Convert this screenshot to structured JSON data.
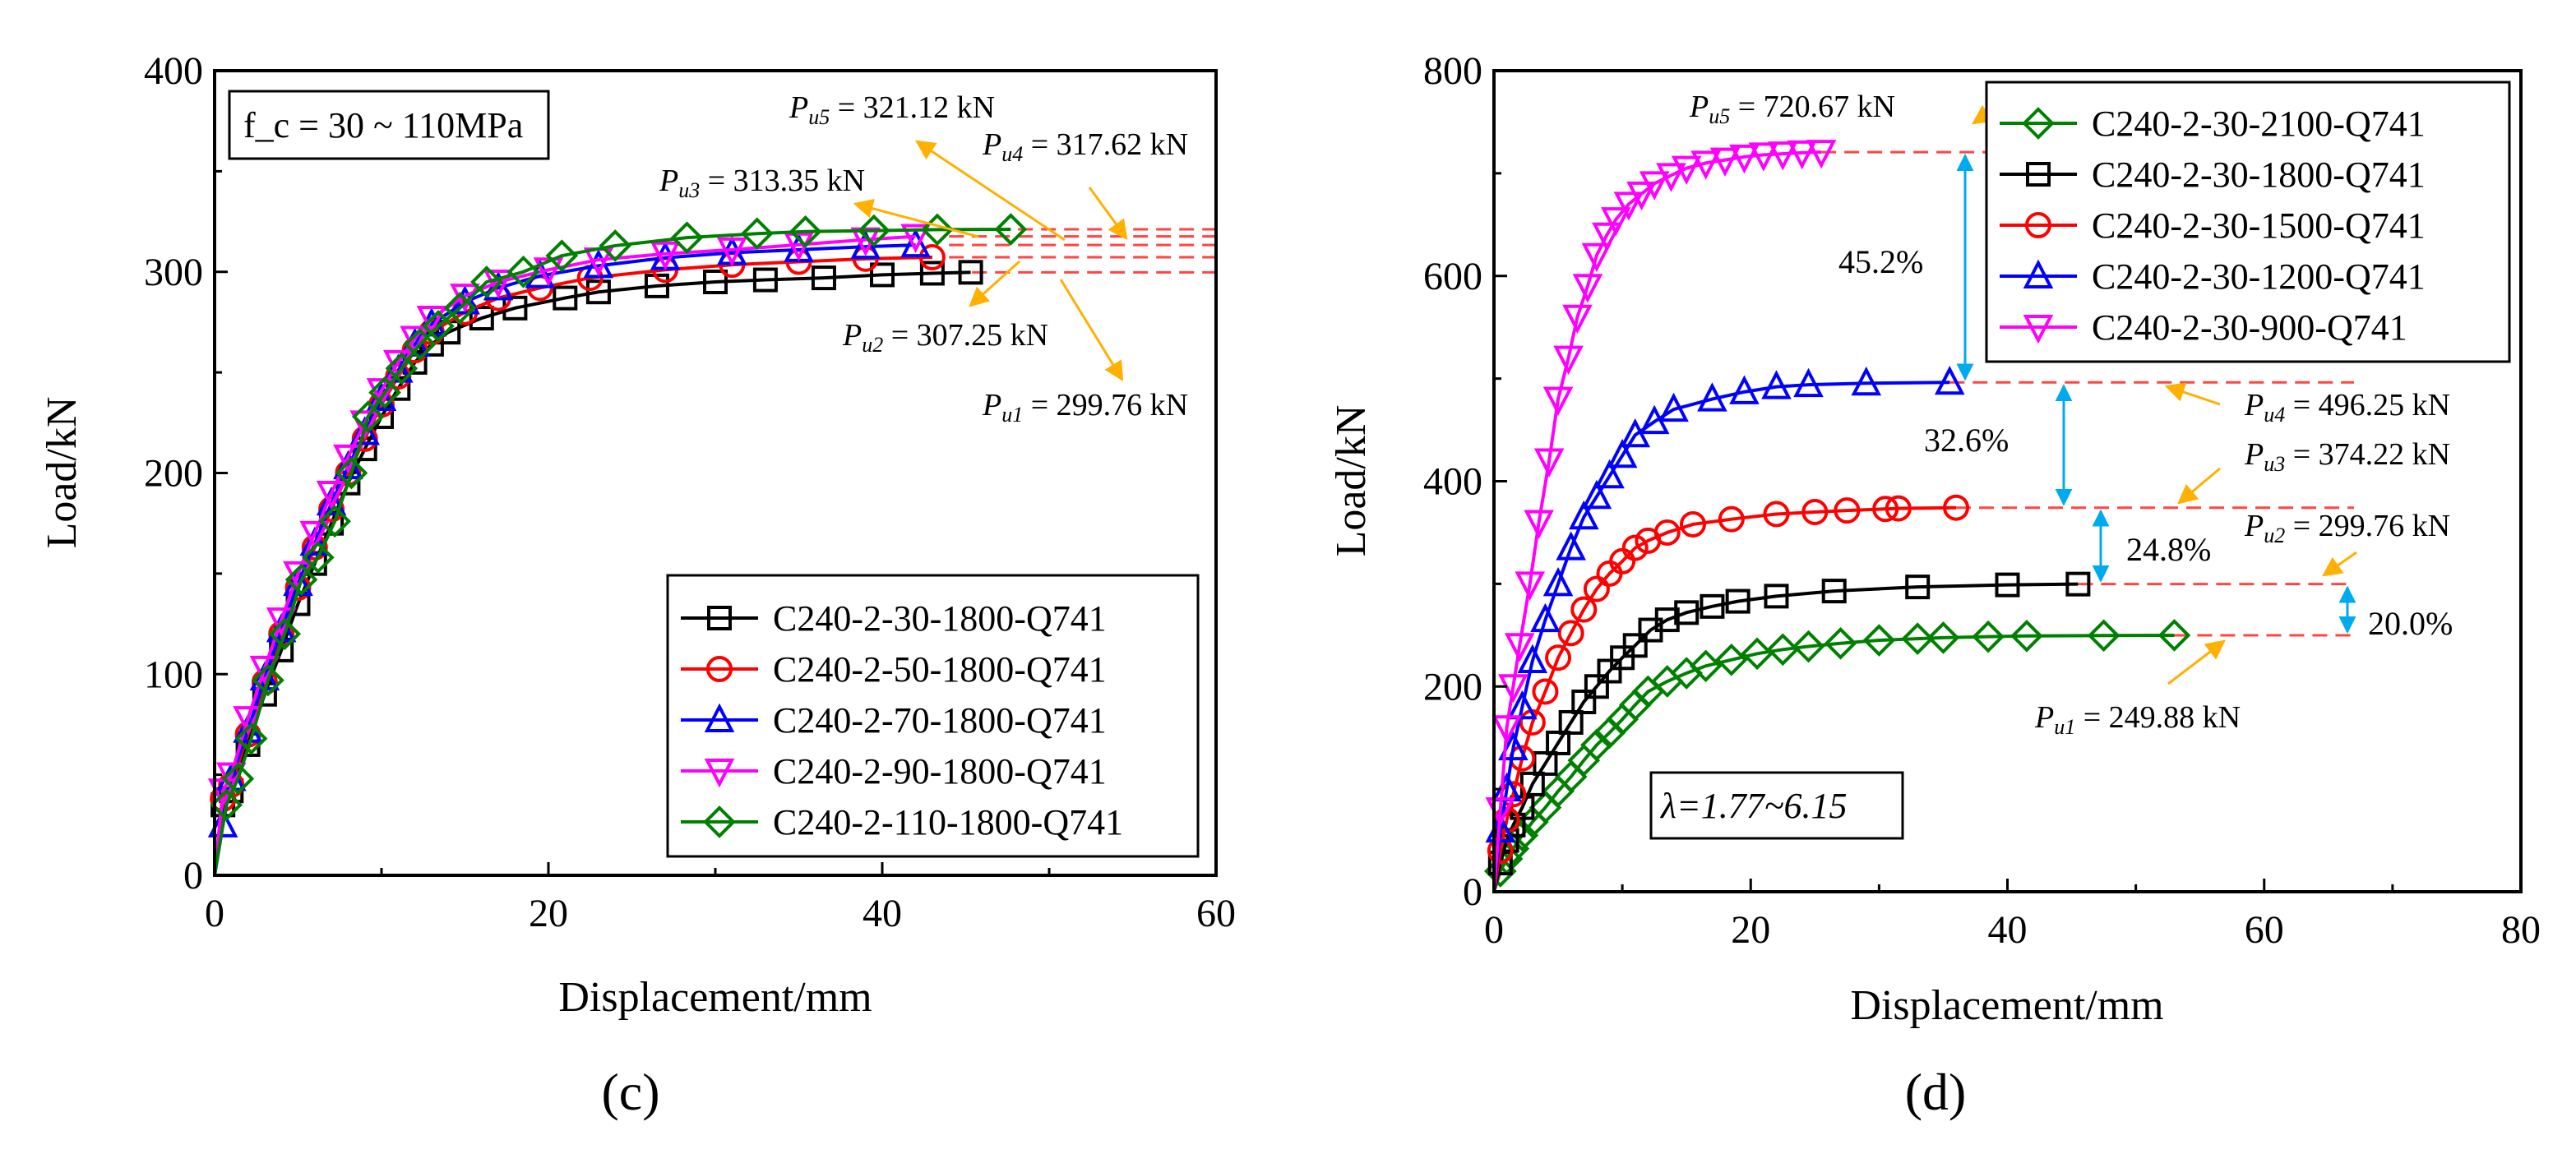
{
  "chart_data": [
    {
      "type": "line",
      "panel_label": "(c)",
      "xlabel": "Displacement/mm",
      "ylabel": "Load/kN",
      "xlim": [
        0,
        60
      ],
      "ylim": [
        0,
        400
      ],
      "xticks": [
        0,
        20,
        40,
        60
      ],
      "yticks": [
        0,
        100,
        200,
        300,
        400
      ],
      "grid": false,
      "legend_position": "bottom-right",
      "note": "f_c = 30 ~ 110MPa",
      "series": [
        {
          "name": "C240-2-30-1800-Q741",
          "color": "#000000",
          "marker": "square",
          "x": [
            0,
            0.5,
            1,
            2,
            3,
            4,
            5,
            6,
            7,
            8,
            9,
            10,
            11,
            12,
            13,
            14,
            16,
            18,
            21,
            23,
            26.5,
            30,
            33,
            36.5,
            40,
            43,
            45.3
          ],
          "y": [
            0,
            35,
            42,
            65,
            90,
            112,
            135,
            155,
            175,
            195,
            212,
            228,
            242,
            255,
            264,
            270,
            277,
            282,
            287,
            290,
            293,
            295,
            296,
            297,
            298.5,
            299.3,
            299.76
          ]
        },
        {
          "name": "C240-2-50-1800-Q741",
          "color": "#ff0000",
          "marker": "circle",
          "x": [
            0,
            0.5,
            1,
            2,
            3,
            4,
            5,
            6,
            7,
            8,
            9,
            10,
            11,
            12,
            13,
            15,
            17,
            19.5,
            22.5,
            27,
            31,
            35,
            39,
            43
          ],
          "y": [
            0,
            38,
            45,
            70,
            96,
            120,
            143,
            163,
            182,
            200,
            217,
            234,
            248,
            261,
            270,
            280,
            287,
            292,
            297,
            301,
            303.5,
            305,
            306.5,
            307.25
          ]
        },
        {
          "name": "C240-2-70-1800-Q741",
          "color": "#0000ff",
          "marker": "triangle-up",
          "x": [
            0,
            0.5,
            1,
            2,
            3,
            4,
            5,
            6,
            7,
            8,
            9,
            10,
            11,
            12,
            13,
            15,
            17,
            19.5,
            23,
            27,
            31,
            35,
            39,
            42
          ],
          "y": [
            0,
            25,
            48,
            72,
            98,
            122,
            145,
            165,
            185,
            203,
            220,
            237,
            251,
            264,
            274,
            285,
            292,
            298,
            303,
            307,
            309.5,
            311,
            312.5,
            313.35
          ]
        },
        {
          "name": "C240-2-90-1800-Q741",
          "color": "#ff00ff",
          "marker": "triangle-down",
          "x": [
            0,
            0.5,
            1,
            2,
            3,
            4,
            5,
            6,
            7,
            8,
            9,
            10,
            11,
            12,
            13,
            15,
            17,
            20,
            23,
            27,
            31,
            35,
            39,
            42
          ],
          "y": [
            0,
            42,
            50,
            78,
            103,
            127,
            150,
            170,
            190,
            208,
            225,
            241,
            255,
            267,
            277,
            288,
            295,
            301,
            306,
            309,
            311,
            313.5,
            316,
            317.62
          ]
        },
        {
          "name": "C240-2-110-1800-Q741",
          "color": "#008000",
          "marker": "diamond",
          "x": [
            0,
            0.7,
            1.4,
            2.2,
            3.2,
            4.2,
            5.2,
            6.2,
            7.2,
            8.2,
            9.2,
            10.2,
            11.2,
            12.3,
            13.4,
            14.7,
            16.3,
            18.5,
            20.8,
            24,
            28.3,
            32.5,
            35.4,
            39.5,
            43.3,
            47.7
          ],
          "y": [
            0,
            35,
            48,
            68,
            97,
            120,
            147,
            158,
            176,
            200,
            228,
            240,
            252,
            264,
            273,
            282,
            295,
            300,
            308,
            313,
            317,
            319,
            320,
            320.5,
            321,
            321.12
          ]
        }
      ],
      "ultimate_loads": [
        {
          "label": "299.76 kN",
          "sub": "u1",
          "value": 299.76
        },
        {
          "label": "307.25 kN",
          "sub": "u2",
          "value": 307.25
        },
        {
          "label": "313.35 kN",
          "sub": "u3",
          "value": 313.35
        },
        {
          "label": "317.62 kN",
          "sub": "u4",
          "value": 317.62
        },
        {
          "label": "321.12 kN",
          "sub": "u5",
          "value": 321.12
        }
      ]
    },
    {
      "type": "line",
      "panel_label": "(d)",
      "xlabel": "Displacement/mm",
      "ylabel": "Load/kN",
      "xlim": [
        0,
        80
      ],
      "ylim": [
        0,
        800
      ],
      "xticks": [
        0,
        20,
        40,
        60,
        80
      ],
      "yticks": [
        0,
        200,
        400,
        600,
        800
      ],
      "grid": false,
      "legend_position": "top-right",
      "note": "λ=1.77~6.15",
      "series": [
        {
          "name": "C240-2-30-2100-Q741",
          "color": "#008000",
          "marker": "diamond",
          "x": [
            0,
            0.5,
            1,
            1.5,
            2.2,
            3,
            4,
            5,
            6,
            7,
            8,
            9,
            10,
            11,
            12,
            13.5,
            15,
            16.5,
            18.5,
            20.5,
            22.5,
            24.5,
            27,
            30,
            33,
            35,
            38.5,
            41.5,
            47.5,
            53
          ],
          "y": [
            0,
            20,
            32,
            42,
            55,
            68,
            82,
            98,
            112,
            128,
            143,
            155,
            168,
            182,
            195,
            205,
            213,
            220,
            226,
            232,
            236,
            239,
            242,
            245,
            246.5,
            247.5,
            248.5,
            249.2,
            249.6,
            249.88
          ]
        },
        {
          "name": "C240-2-30-1800-Q741",
          "color": "#000000",
          "marker": "square",
          "x": [
            0,
            0.5,
            1,
            1.5,
            2.2,
            3,
            4,
            5,
            6,
            7,
            8,
            9,
            10,
            11,
            12.2,
            13.5,
            15,
            17,
            19,
            22,
            26.5,
            33,
            40,
            45.5
          ],
          "y": [
            0,
            28,
            50,
            65,
            82,
            105,
            125,
            145,
            165,
            185,
            200,
            215,
            228,
            240,
            255,
            265,
            272,
            278,
            283,
            288,
            293,
            297,
            299,
            299.76
          ]
        },
        {
          "name": "C240-2-30-1500-Q741",
          "color": "#ff0000",
          "marker": "circle",
          "x": [
            0,
            0.5,
            1,
            1.5,
            2.2,
            3,
            4,
            5,
            6,
            7,
            8,
            9,
            10,
            11,
            12,
            13.5,
            15.5,
            18.5,
            22,
            25,
            27.5,
            30.5,
            31.5,
            36
          ],
          "y": [
            0,
            40,
            70,
            95,
            130,
            165,
            195,
            228,
            252,
            275,
            295,
            310,
            322,
            335,
            342,
            350,
            358,
            363,
            368,
            370,
            371.5,
            373,
            373.5,
            374.22
          ]
        },
        {
          "name": "C240-2-30-1200-Q741",
          "color": "#0000ff",
          "marker": "triangle-up",
          "x": [
            0,
            0.5,
            1,
            1.5,
            2.2,
            3,
            4,
            5,
            6,
            7,
            8,
            9,
            10,
            11,
            12.5,
            14,
            17,
            19.5,
            22,
            24.5,
            29,
            35.5
          ],
          "y": [
            0,
            60,
            100,
            140,
            180,
            225,
            265,
            300,
            335,
            365,
            385,
            405,
            425,
            445,
            458,
            470,
            480,
            487,
            492,
            494,
            495.5,
            496.25
          ]
        },
        {
          "name": "C240-2-30-900-Q741",
          "color": "#ff00ff",
          "marker": "triangle-down",
          "x": [
            0,
            0.5,
            1,
            1.5,
            2,
            2.8,
            3.5,
            4.3,
            5,
            5.8,
            6.5,
            7.3,
            8,
            8.8,
            9.5,
            10.5,
            11.5,
            12.5,
            13.8,
            15,
            16.5,
            18,
            19.5,
            21,
            22.5,
            24,
            25.5
          ],
          "y": [
            0,
            80,
            160,
            200,
            240,
            300,
            360,
            420,
            480,
            520,
            560,
            590,
            620,
            640,
            655,
            670,
            680,
            690,
            698,
            705,
            710,
            713,
            716,
            718,
            719,
            720,
            720.67
          ]
        }
      ],
      "ultimate_loads": [
        {
          "label": "249.88 kN",
          "sub": "u1",
          "value": 249.88
        },
        {
          "label": "299.76 kN",
          "sub": "u2",
          "value": 299.76
        },
        {
          "label": "374.22 kN",
          "sub": "u3",
          "value": 374.22
        },
        {
          "label": "496.25 kN",
          "sub": "u4",
          "value": 496.25
        },
        {
          "label": "720.67 kN",
          "sub": "u5",
          "value": 720.67
        }
      ],
      "increments": [
        "20.0%",
        "24.8%",
        "32.6%",
        "45.2%"
      ]
    }
  ],
  "colors": {
    "axis": "#000000",
    "dashed_reference": "#ff4444",
    "annotation_arrow": "#ffb000",
    "increment_arrow": "#00aaee"
  }
}
